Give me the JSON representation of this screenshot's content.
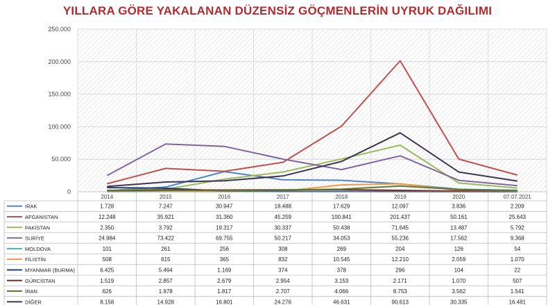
{
  "chart_data": {
    "type": "line",
    "title": "YILLARA GÖRE YAKALANAN DÜZENSİZ GÖÇMENLERİN UYRUK DAĞILIMI",
    "categories": [
      "2014",
      "2015",
      "2016",
      "2017",
      "2018",
      "2019",
      "2020",
      "07.07.2021"
    ],
    "ylim": [
      0,
      250000
    ],
    "yticks": [
      "0",
      "50.000",
      "100.000",
      "150.000",
      "200.000",
      "250.000"
    ],
    "ytick_values": [
      0,
      50000,
      100000,
      150000,
      200000,
      250000
    ],
    "grid": true,
    "legend_placement": "data-table-left",
    "series": [
      {
        "name": "IRAK",
        "color": "#4a86c8",
        "values": [
          1728,
          7247,
          30947,
          18488,
          17629,
          12097,
          3836,
          2209
        ],
        "labels": [
          "1.728",
          "7.247",
          "30.947",
          "18.488",
          "17.629",
          "12.097",
          "3.836",
          "2.209"
        ]
      },
      {
        "name": "AFGANİSTAN",
        "color": "#c0504d",
        "values": [
          12248,
          35921,
          31360,
          45259,
          100841,
          201437,
          50161,
          25643
        ],
        "labels": [
          "12.248",
          "35.921",
          "31.360",
          "45.259",
          "100.841",
          "201.437",
          "50.161",
          "25.643"
        ]
      },
      {
        "name": "PAKİSTAN",
        "color": "#9bbb59",
        "values": [
          2350,
          3792,
          19317,
          30337,
          50438,
          71645,
          13487,
          5792
        ],
        "labels": [
          "2.350",
          "3.792",
          "19.317",
          "30.337",
          "50.438",
          "71.645",
          "13.487",
          "5.792"
        ]
      },
      {
        "name": "SURİYE",
        "color": "#8064a2",
        "values": [
          24984,
          73422,
          69755,
          50217,
          34053,
          55236,
          17562,
          9368
        ],
        "labels": [
          "24.984",
          "73.422",
          "69.755",
          "50.217",
          "34.053",
          "55.236",
          "17.562",
          "9.368"
        ]
      },
      {
        "name": "MOLDOVA",
        "color": "#4bacc6",
        "values": [
          101,
          261,
          256,
          308,
          269,
          204,
          126,
          54
        ],
        "labels": [
          "101",
          "261",
          "256",
          "308",
          "269",
          "204",
          "126",
          "54"
        ]
      },
      {
        "name": "FİLİSTİN",
        "color": "#f79646",
        "values": [
          508,
          615,
          365,
          832,
          10545,
          12210,
          2059,
          1070
        ],
        "labels": [
          "508",
          "615",
          "365",
          "832",
          "10.545",
          "12.210",
          "2.059",
          "1.070"
        ]
      },
      {
        "name": "MYANMAR (BURMA)",
        "color": "#1f3f75",
        "values": [
          6425,
          5464,
          1169,
          374,
          378,
          296,
          104,
          22
        ],
        "labels": [
          "6.425",
          "5.464",
          "1.169",
          "374",
          "378",
          "296",
          "104",
          "22"
        ]
      },
      {
        "name": "GÜRCİSTAN",
        "color": "#7f2b28",
        "values": [
          1519,
          2857,
          2679,
          2954,
          3153,
          2171,
          1070,
          507
        ],
        "labels": [
          "1.519",
          "2.857",
          "2.679",
          "2.954",
          "3.153",
          "2.171",
          "1.070",
          "507"
        ]
      },
      {
        "name": "İRAN",
        "color": "#5a7a2e",
        "values": [
          626,
          1978,
          1817,
          2707,
          4066,
          8753,
          3562,
          1541
        ],
        "labels": [
          "626",
          "1.978",
          "1.817",
          "2.707",
          "4.066",
          "8.753",
          "3.562",
          "1.541"
        ]
      },
      {
        "name": "DİĞER",
        "color": "#3f3355",
        "values": [
          8158,
          14928,
          16801,
          24276,
          46631,
          90613,
          30335,
          16481
        ],
        "labels": [
          "8.158",
          "14.928",
          "16.801",
          "24.276",
          "46.631",
          "90.613",
          "30.335",
          "16.481"
        ]
      }
    ]
  }
}
